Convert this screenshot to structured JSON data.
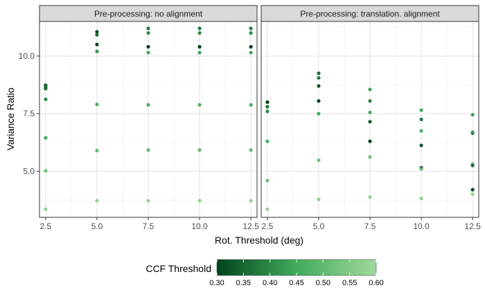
{
  "chart_data": {
    "type": "scatter",
    "title": "",
    "xlabel": "Rot. Threshold (deg)",
    "ylabel": "Variance Ratio",
    "xlim": [
      2.2,
      12.8
    ],
    "ylim": [
      3.0,
      11.5
    ],
    "x_ticks": [
      "2.5",
      "5.0",
      "7.5",
      "10.0",
      "12.5"
    ],
    "y_ticks": [
      "5.0",
      "7.5",
      "10.0"
    ],
    "x_tick_values": [
      2.5,
      5.0,
      7.5,
      10.0,
      12.5
    ],
    "y_tick_values": [
      5.0,
      7.5,
      10.0
    ],
    "grid": true,
    "legend": {
      "title": "CCF Threshold",
      "position": "bottom",
      "range": [
        0.3,
        0.6
      ],
      "ticks": [
        "0.30",
        "0.35",
        "0.40",
        "0.45",
        "0.50",
        "0.55",
        "0.60"
      ],
      "tick_values": [
        0.3,
        0.35,
        0.4,
        0.45,
        0.5,
        0.55,
        0.6
      ],
      "color_low": "#00441b",
      "color_mid": "#41ab5d",
      "color_high": "#a1d99b"
    },
    "facets": [
      {
        "strip_label": "Pre-processing: no alignment",
        "points": [
          {
            "x": 2.5,
            "y": 8.73,
            "c": 0.33
          },
          {
            "x": 2.5,
            "y": 8.65,
            "c": 0.35
          },
          {
            "x": 2.5,
            "y": 8.58,
            "c": 0.37
          },
          {
            "x": 2.5,
            "y": 8.12,
            "c": 0.4
          },
          {
            "x": 2.5,
            "y": 6.45,
            "c": 0.45
          },
          {
            "x": 2.5,
            "y": 5.02,
            "c": 0.52
          },
          {
            "x": 2.5,
            "y": 3.35,
            "c": 0.58
          },
          {
            "x": 5.0,
            "y": 11.05,
            "c": 0.31
          },
          {
            "x": 5.0,
            "y": 10.92,
            "c": 0.36
          },
          {
            "x": 5.0,
            "y": 10.5,
            "c": 0.3
          },
          {
            "x": 5.0,
            "y": 10.2,
            "c": 0.42
          },
          {
            "x": 5.0,
            "y": 7.9,
            "c": 0.46
          },
          {
            "x": 5.0,
            "y": 5.9,
            "c": 0.5
          },
          {
            "x": 5.0,
            "y": 3.72,
            "c": 0.58
          },
          {
            "x": 7.5,
            "y": 11.2,
            "c": 0.38
          },
          {
            "x": 7.5,
            "y": 11.0,
            "c": 0.4
          },
          {
            "x": 7.5,
            "y": 10.4,
            "c": 0.3
          },
          {
            "x": 7.5,
            "y": 10.15,
            "c": 0.44
          },
          {
            "x": 7.5,
            "y": 7.88,
            "c": 0.47
          },
          {
            "x": 7.5,
            "y": 5.92,
            "c": 0.5
          },
          {
            "x": 7.5,
            "y": 3.72,
            "c": 0.58
          },
          {
            "x": 10.0,
            "y": 11.2,
            "c": 0.38
          },
          {
            "x": 10.0,
            "y": 11.0,
            "c": 0.4
          },
          {
            "x": 10.0,
            "y": 10.4,
            "c": 0.3
          },
          {
            "x": 10.0,
            "y": 10.15,
            "c": 0.44
          },
          {
            "x": 10.0,
            "y": 7.88,
            "c": 0.47
          },
          {
            "x": 10.0,
            "y": 5.92,
            "c": 0.5
          },
          {
            "x": 10.0,
            "y": 3.72,
            "c": 0.58
          },
          {
            "x": 12.5,
            "y": 11.2,
            "c": 0.38
          },
          {
            "x": 12.5,
            "y": 11.0,
            "c": 0.4
          },
          {
            "x": 12.5,
            "y": 10.4,
            "c": 0.3
          },
          {
            "x": 12.5,
            "y": 10.15,
            "c": 0.44
          },
          {
            "x": 12.5,
            "y": 7.88,
            "c": 0.47
          },
          {
            "x": 12.5,
            "y": 5.92,
            "c": 0.5
          },
          {
            "x": 12.5,
            "y": 3.72,
            "c": 0.58
          }
        ]
      },
      {
        "strip_label": "Pre-processing: translation. alignment",
        "points": [
          {
            "x": 2.5,
            "y": 8.0,
            "c": 0.3
          },
          {
            "x": 2.5,
            "y": 7.8,
            "c": 0.36
          },
          {
            "x": 2.5,
            "y": 7.6,
            "c": 0.4
          },
          {
            "x": 2.5,
            "y": 6.3,
            "c": 0.46
          },
          {
            "x": 2.5,
            "y": 4.6,
            "c": 0.52
          },
          {
            "x": 2.5,
            "y": 3.35,
            "c": 0.58
          },
          {
            "x": 5.0,
            "y": 9.25,
            "c": 0.36
          },
          {
            "x": 5.0,
            "y": 9.05,
            "c": 0.38
          },
          {
            "x": 5.0,
            "y": 8.7,
            "c": 0.33
          },
          {
            "x": 5.0,
            "y": 8.05,
            "c": 0.3
          },
          {
            "x": 5.0,
            "y": 7.5,
            "c": 0.45
          },
          {
            "x": 5.0,
            "y": 5.48,
            "c": 0.52
          },
          {
            "x": 5.0,
            "y": 3.78,
            "c": 0.58
          },
          {
            "x": 7.5,
            "y": 8.55,
            "c": 0.44
          },
          {
            "x": 7.5,
            "y": 8.05,
            "c": 0.4
          },
          {
            "x": 7.5,
            "y": 7.55,
            "c": 0.46
          },
          {
            "x": 7.5,
            "y": 7.15,
            "c": 0.34
          },
          {
            "x": 7.5,
            "y": 6.3,
            "c": 0.3
          },
          {
            "x": 7.5,
            "y": 5.62,
            "c": 0.52
          },
          {
            "x": 7.5,
            "y": 3.88,
            "c": 0.58
          },
          {
            "x": 10.0,
            "y": 7.65,
            "c": 0.45
          },
          {
            "x": 10.0,
            "y": 7.25,
            "c": 0.38
          },
          {
            "x": 10.0,
            "y": 6.75,
            "c": 0.47
          },
          {
            "x": 10.0,
            "y": 6.12,
            "c": 0.33
          },
          {
            "x": 10.0,
            "y": 5.15,
            "c": 0.3
          },
          {
            "x": 10.0,
            "y": 5.1,
            "c": 0.5
          },
          {
            "x": 10.0,
            "y": 3.82,
            "c": 0.58
          },
          {
            "x": 12.5,
            "y": 7.45,
            "c": 0.44
          },
          {
            "x": 12.5,
            "y": 6.7,
            "c": 0.48
          },
          {
            "x": 12.5,
            "y": 6.65,
            "c": 0.4
          },
          {
            "x": 12.5,
            "y": 5.32,
            "c": 0.55
          },
          {
            "x": 12.5,
            "y": 5.25,
            "c": 0.35
          },
          {
            "x": 12.5,
            "y": 4.2,
            "c": 0.3
          },
          {
            "x": 12.5,
            "y": 4.0,
            "c": 0.58
          }
        ]
      }
    ]
  }
}
